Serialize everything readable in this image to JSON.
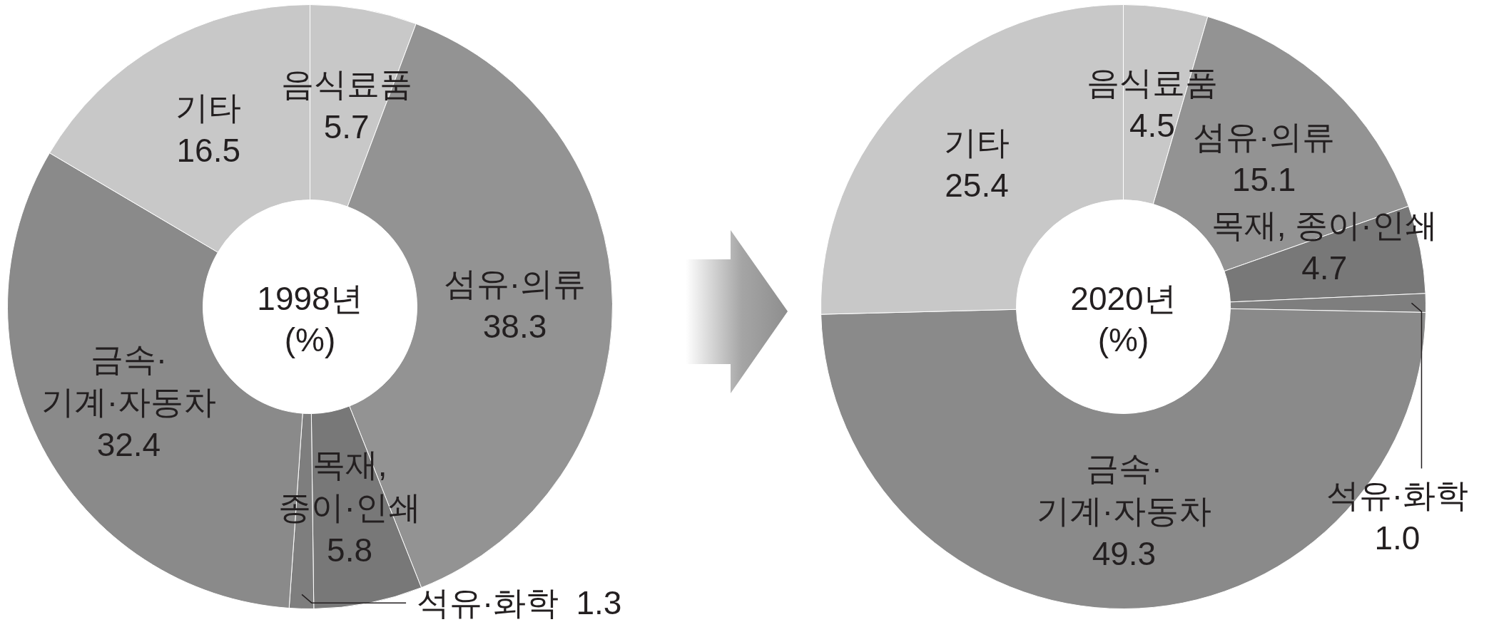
{
  "chart_data": [
    {
      "type": "donut",
      "title": "1998년",
      "subtitle": "(%)",
      "categories": [
        "음식료품",
        "섬유·의류",
        "목재,\n종이·인쇄",
        "석유·화학",
        "금속·\n기계·자동차",
        "기타"
      ],
      "values": [
        5.7,
        38.3,
        5.8,
        1.3,
        32.4,
        16.5
      ],
      "value_labels": [
        "5.7",
        "38.3",
        "5.8",
        "1.3",
        "32.4",
        "16.5"
      ],
      "colors": [
        "#c8c8c8",
        "#939393",
        "#787878",
        "#7e7e7e",
        "#8a8a8a",
        "#c8c8c8"
      ]
    },
    {
      "type": "donut",
      "title": "2020년",
      "subtitle": "(%)",
      "categories": [
        "음식료품",
        "섬유·의류",
        "목재, 종이·인쇄",
        "석유·화학",
        "금속·\n기계·자동차",
        "기타"
      ],
      "values": [
        4.5,
        15.1,
        4.7,
        1.0,
        49.3,
        25.4
      ],
      "value_labels": [
        "4.5",
        "15.1",
        "4.7",
        "1.0",
        "49.3",
        "25.4"
      ],
      "colors": [
        "#c8c8c8",
        "#939393",
        "#787878",
        "#7e7e7e",
        "#8a8a8a",
        "#c8c8c8"
      ]
    }
  ]
}
